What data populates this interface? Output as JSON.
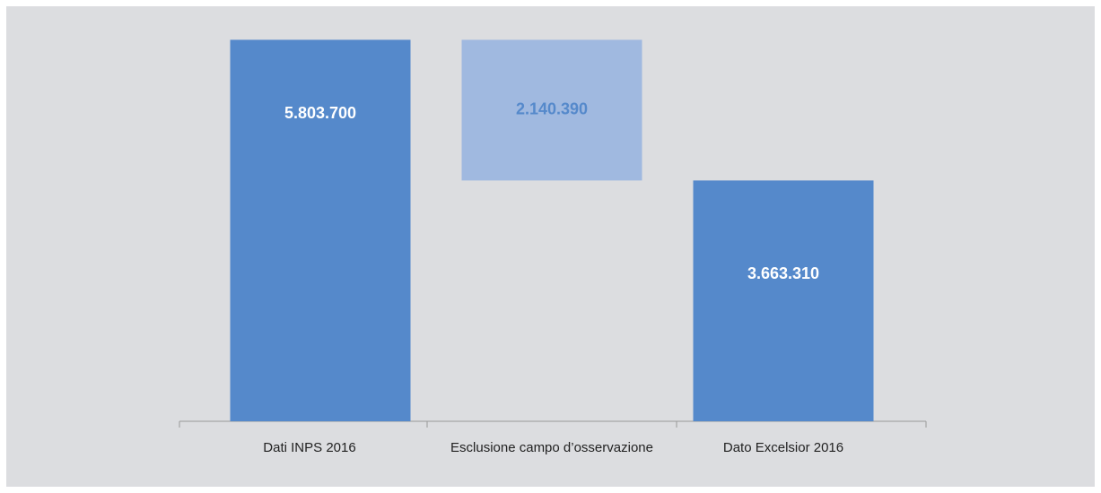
{
  "chart_data": {
    "type": "waterfall",
    "categories": [
      "Dati INPS 2016",
      "Esclusione campo d’osservazione",
      "Dato Excelsior 2016"
    ],
    "values": [
      5803700,
      2140390,
      3663310
    ],
    "value_labels": [
      "5.803.700",
      "2.140.390",
      "3.663.310"
    ],
    "measure": [
      "total",
      "decrease",
      "total"
    ],
    "colors": [
      "#5589cb",
      "#a0b9e0",
      "#5589cb"
    ],
    "label_colors": [
      "#ffffff",
      "#5589cb",
      "#ffffff"
    ],
    "ylim": [
      0,
      6000000
    ]
  }
}
